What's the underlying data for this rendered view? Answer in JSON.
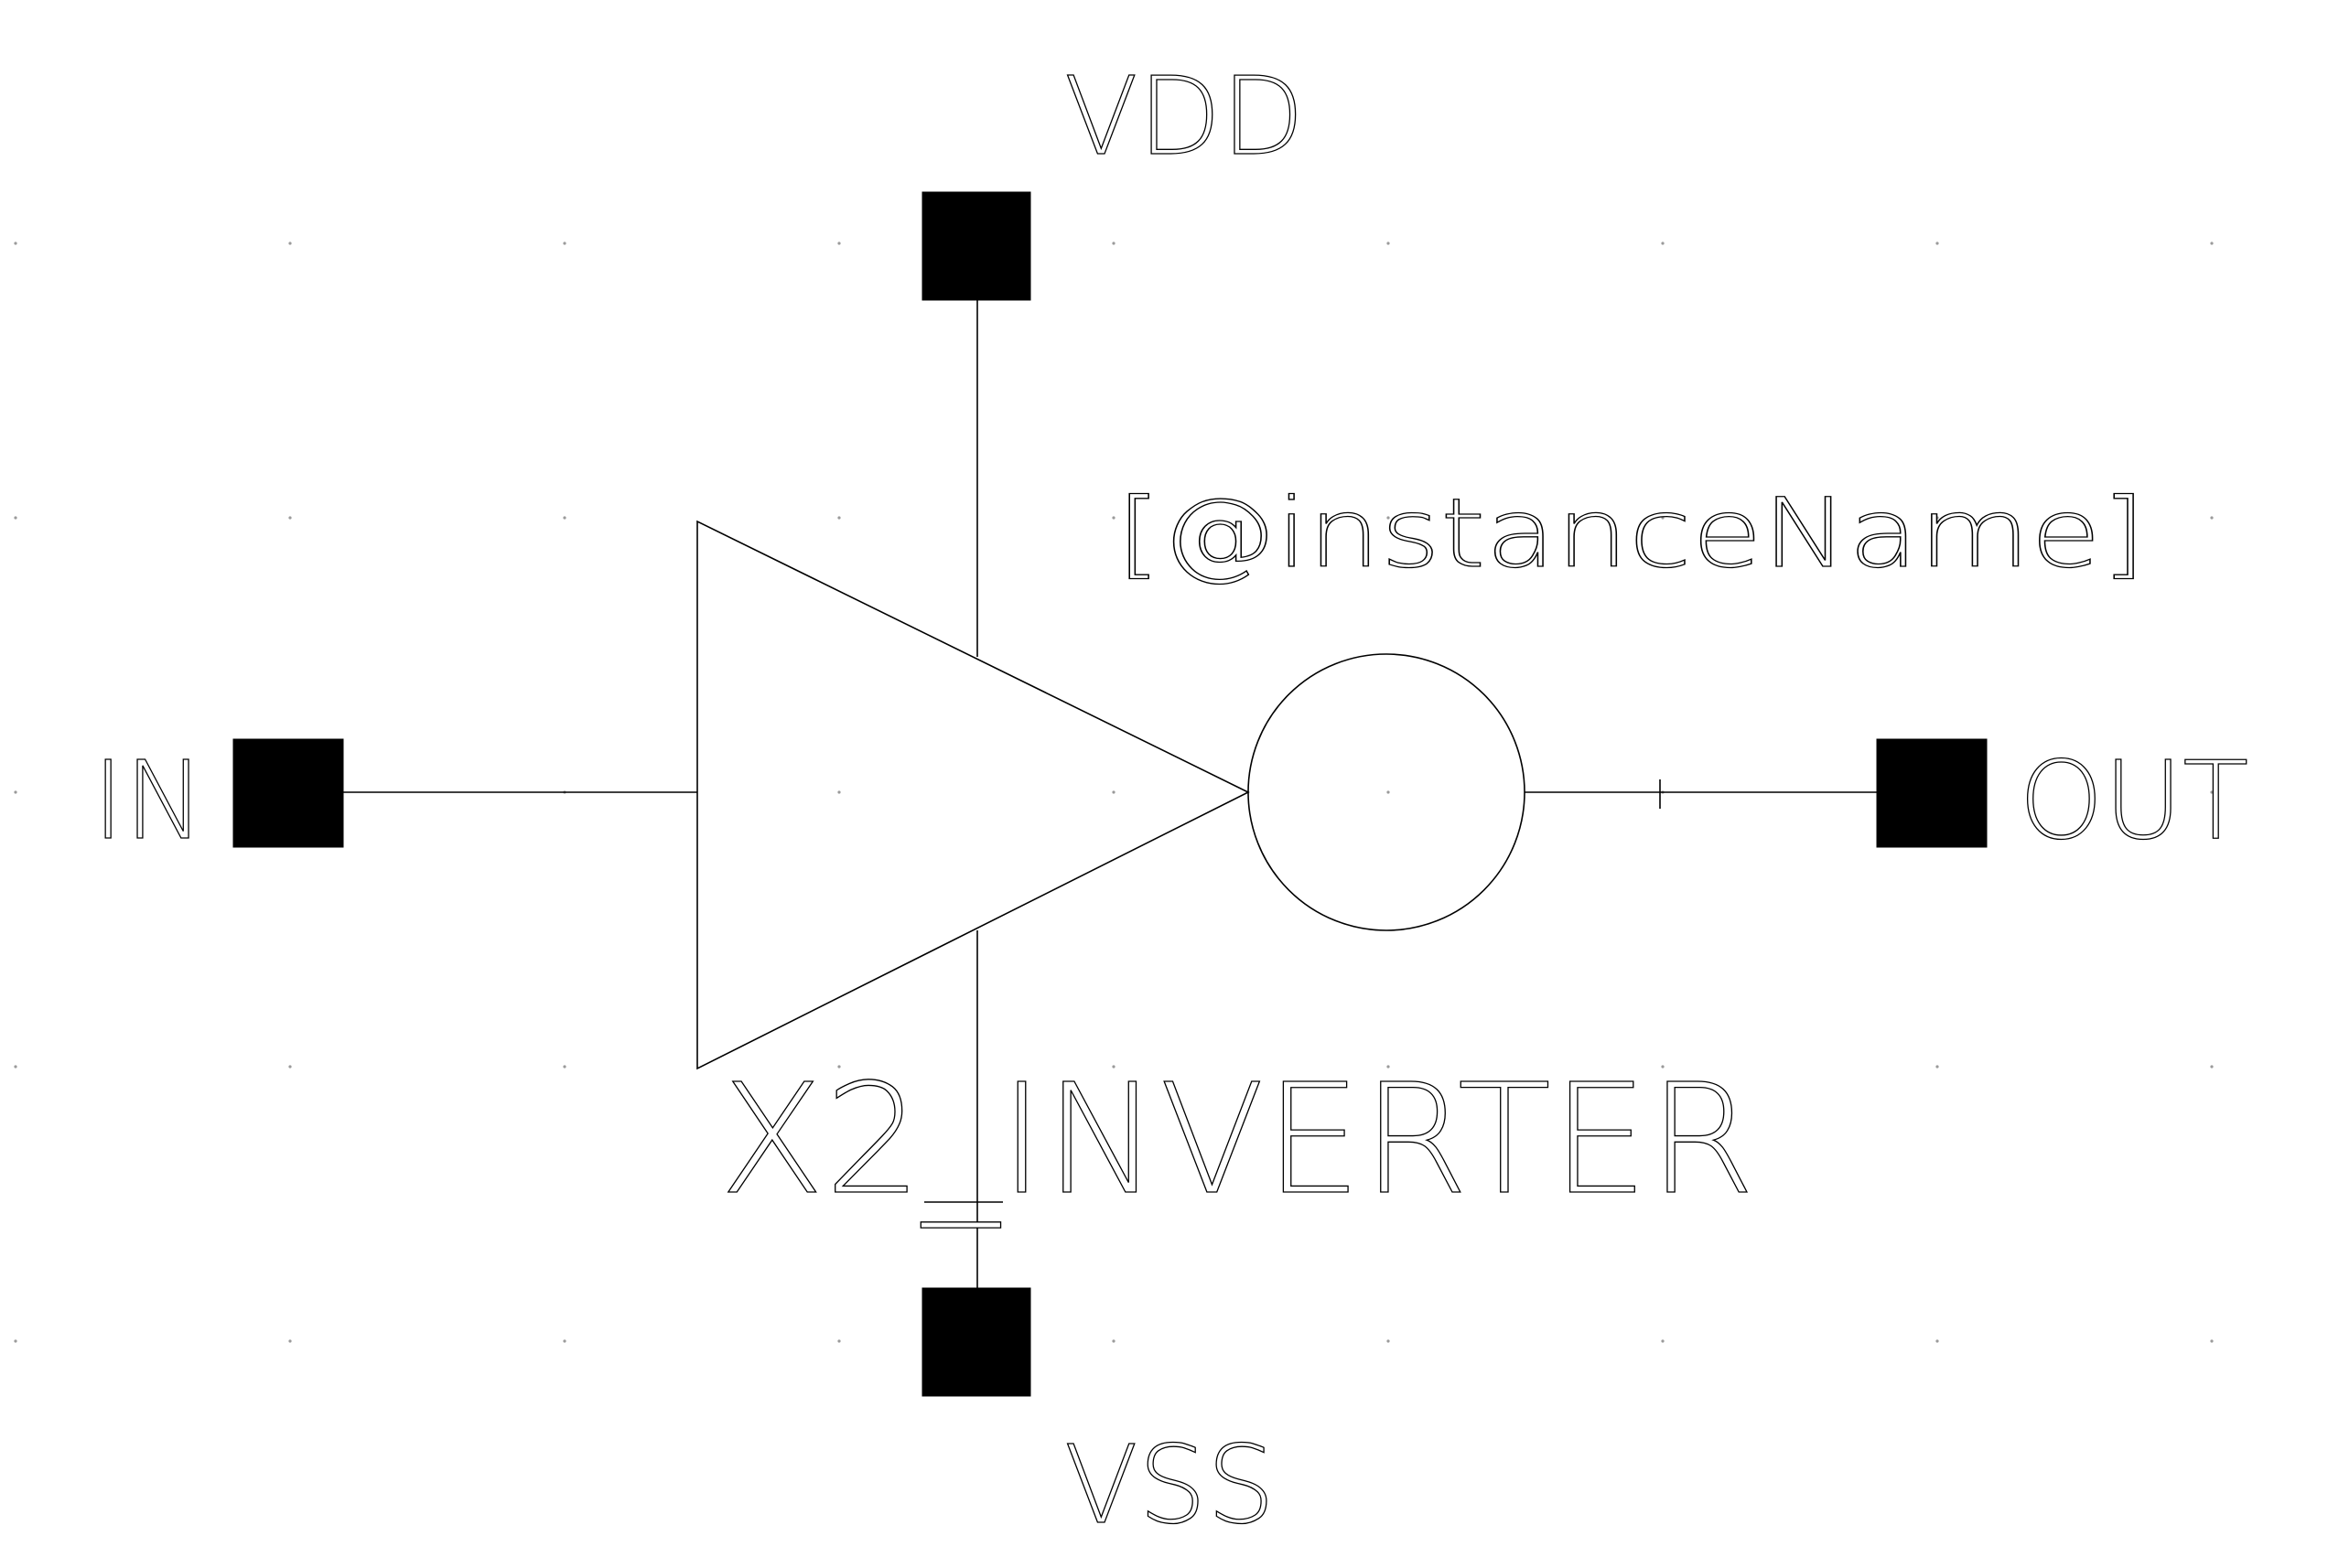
{
  "diagram": {
    "symbol_name": "X2_INVERTER",
    "instance_label": "[@instanceName]",
    "pins": {
      "vdd": "VDD",
      "vss": "VSS",
      "in": "IN",
      "out": "OUT"
    }
  },
  "colors": {
    "background": "#ffffff",
    "stroke": "#000000",
    "grid": "#9a9a9a"
  }
}
